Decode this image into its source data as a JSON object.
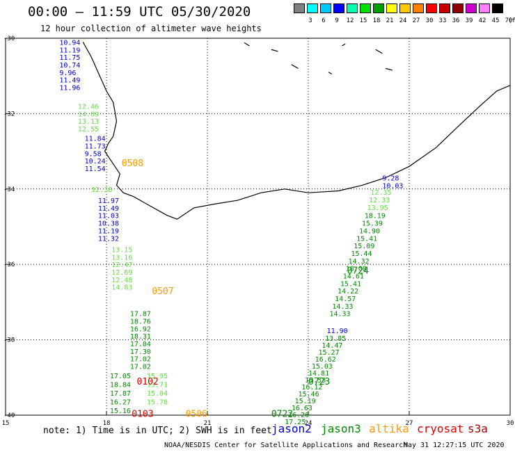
{
  "header": {
    "title": "00:00 – 11:59 UTC 05/30/2020",
    "subtitle": "12 hour collection of altimeter wave heights"
  },
  "legend": {
    "colors": [
      "#808080",
      "#00ffff",
      "#00c8ff",
      "#0000ff",
      "#00ffb0",
      "#00dd00",
      "#00a000",
      "#ffff00",
      "#ffc800",
      "#ff8000",
      "#ff0000",
      "#c80000",
      "#900000",
      "#d000d0",
      "#ff80ff",
      "#000000"
    ],
    "labels": [
      "3",
      "6",
      "9",
      "12",
      "15",
      "18",
      "21",
      "24",
      "27",
      "30",
      "33",
      "36",
      "39",
      "42",
      "45",
      "70"
    ],
    "unit": "(ft)"
  },
  "axes": {
    "lat_labels": [
      "-30",
      "-32",
      "-34",
      "-36",
      "-38",
      "-40"
    ],
    "lon_labels": [
      "15",
      "18",
      "21",
      "24",
      "27",
      "30"
    ]
  },
  "colors": {
    "jason2": "#0000cc",
    "jason3": "#008800",
    "altika": "#ff9900",
    "cryosat": "#dd0000",
    "s3a": "#aa0000",
    "lightgreen": "#66dd44",
    "darkgreen": "#008800"
  },
  "tracks": {
    "west_jason2": [
      "10.94",
      "11.19",
      "11.75",
      "10.74",
      "9.96",
      "11.49",
      "11.96"
    ],
    "west_light_1": [
      "12.46",
      "14.09",
      "13.13",
      "12.55"
    ],
    "west_jason2_b": [
      "11.84",
      "11.73",
      "9.58",
      "10.24",
      "11.54"
    ],
    "west_light_2": [
      "12.38"
    ],
    "west_jason2_c": [
      "11.97",
      "11.49",
      "11.03",
      "10.38",
      "11.19",
      "11.32"
    ],
    "west_light_3": [
      "13.15",
      "13.16",
      "12.47",
      "12.69",
      "12.48",
      "14.83"
    ],
    "west_dark": [
      "17.87",
      "18.76",
      "16.92",
      "18.31",
      "17.04",
      "17.30",
      "17.02",
      "17.02"
    ],
    "west_light_4": [
      "15.95",
      "13.71",
      "15.04",
      "15.78"
    ],
    "west_left": [
      "17.05",
      "18.84",
      "17.87",
      "16.27",
      "15.16"
    ],
    "east_jason2_top": [
      "9.28",
      "10.03"
    ],
    "east_upper_light": [
      "12.35",
      "12.33",
      "13.95"
    ],
    "east_upper_dark": [
      "18.19",
      "15.39",
      "14.90",
      "15.41",
      "15.09",
      "15.44",
      "14.32",
      "16.08",
      "14.61",
      "15.41",
      "14.22",
      "14.57",
      "14.33",
      "14.33"
    ],
    "east_j2": "11.90",
    "east_lower": [
      "13.85",
      "14.47",
      "15.27",
      "16.62",
      "15.03",
      "14.81",
      "15.53",
      "16.12",
      "15.46",
      "15.19",
      "16.63",
      "16.26",
      "17.25"
    ]
  },
  "pass_labels": {
    "p0508": "0508",
    "p0507": "0507",
    "p0102": "0102",
    "p0103": "0103",
    "p0506": "0506",
    "p0724": "0724",
    "p0723": "0723",
    "p0722": "0722"
  },
  "footer": {
    "note": "note: 1) Time is in UTC; 2) SWH is in feet",
    "jason2": "jason2",
    "jason3": "jason3",
    "altika": "altika",
    "cryosat": "cryosat",
    "s3a": "s3a",
    "credit": "NOAA/NESDIS Center for Satellite Applications and Research",
    "timestamp": "May 31 12:27:15 UTC 2020"
  }
}
